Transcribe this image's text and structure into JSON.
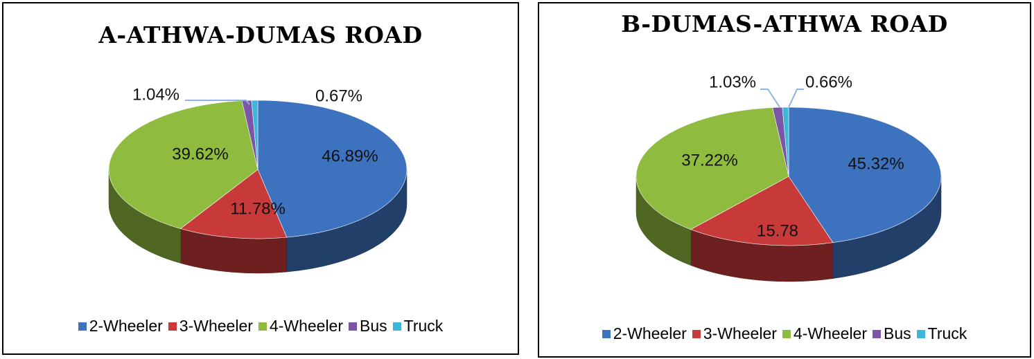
{
  "chart_data": [
    {
      "type": "pie",
      "title": "A-ATHWA-DUMAS ROAD",
      "categories": [
        "2-Wheeler",
        "3-Wheeler",
        "4-Wheeler",
        "Bus",
        "Truck"
      ],
      "values": [
        46.89,
        11.78,
        39.62,
        1.04,
        0.67
      ],
      "data_labels": [
        "46.89%",
        "11.78%",
        "39.62%",
        "1.04%",
        "0.67%"
      ],
      "colors": [
        "#3d72bf",
        "#c8393a",
        "#8fbb3e",
        "#7b56a6",
        "#3fb6d8"
      ],
      "legend": "bottom",
      "style": "3d"
    },
    {
      "type": "pie",
      "title": "B-DUMAS-ATHWA ROAD",
      "categories": [
        "2-Wheeler",
        "3-Wheeler",
        "4-Wheeler",
        "Bus",
        "Truck"
      ],
      "values": [
        45.32,
        15.78,
        37.22,
        1.03,
        0.66
      ],
      "data_labels": [
        "45.32%",
        "15.78",
        "37.22%",
        "1.03%",
        "0.66%"
      ],
      "colors": [
        "#3d72bf",
        "#c8393a",
        "#8fbb3e",
        "#7b56a6",
        "#3fb6d8"
      ],
      "legend": "bottom",
      "style": "3d"
    }
  ]
}
